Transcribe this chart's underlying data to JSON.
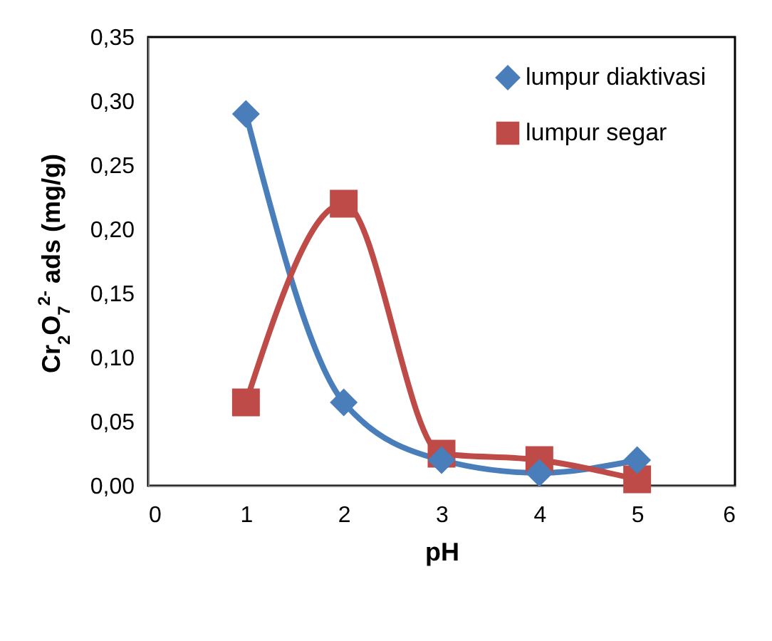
{
  "chart_data": {
    "type": "line",
    "xlabel": "pH",
    "ylabel": "Cr$_{2}$O$_{7}$$^{2-}$ ads  (mg/g)",
    "x": [
      1,
      2,
      3,
      4,
      5
    ],
    "series": [
      {
        "name": "lumpur diaktivasi",
        "color": "#4a7ebb",
        "marker": "diamond",
        "values": [
          0.29,
          0.065,
          0.02,
          0.01,
          0.02
        ]
      },
      {
        "name": "lumpur segar",
        "color": "#be4b48",
        "marker": "square",
        "values": [
          0.065,
          0.22,
          0.025,
          0.02,
          0.005
        ]
      }
    ],
    "xlim": [
      0,
      6
    ],
    "xticks": [
      0,
      1,
      2,
      3,
      4,
      5,
      6
    ],
    "ylim": [
      0,
      0.35
    ],
    "yticks": [
      {
        "value": 0,
        "label": "0,00"
      },
      {
        "value": 0.05,
        "label": "0,05"
      },
      {
        "value": 0.1,
        "label": "0,10"
      },
      {
        "value": 0.15,
        "label": "0,15"
      },
      {
        "value": 0.2,
        "label": "0,20"
      },
      {
        "value": 0.25,
        "label": "0,25"
      },
      {
        "value": 0.3,
        "label": "0,30"
      },
      {
        "value": 0.35,
        "label": "0,35"
      }
    ],
    "grid": false,
    "legend": "top right"
  }
}
